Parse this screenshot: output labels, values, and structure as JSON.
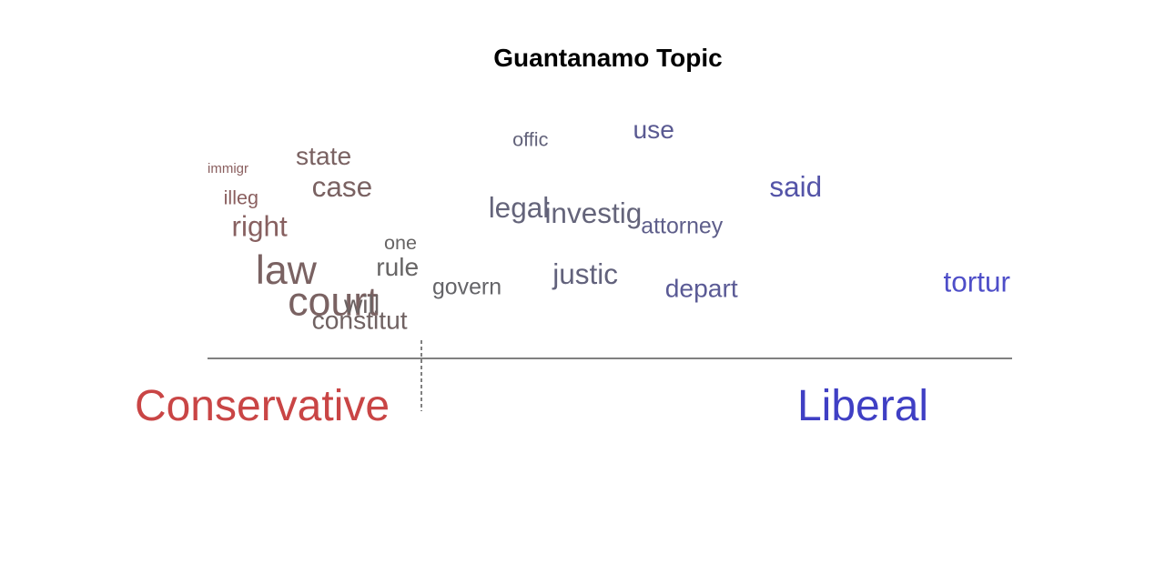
{
  "chart_data": {
    "type": "scatter",
    "title": "Guantanamo Topic",
    "xlabel": "",
    "ylabel": "",
    "grid": false,
    "legend": "none",
    "pole_labels": {
      "left": "Conservative",
      "right": "Liberal"
    },
    "pole_colors": {
      "left": "#c94545",
      "right": "#3f3fc4"
    },
    "words": [
      {
        "word": "immigr",
        "x": 0.0,
        "y": 0.92,
        "weight": 1,
        "color": "#8a5f5f"
      },
      {
        "word": "state",
        "x": 0.11,
        "y": 0.95,
        "weight": 5,
        "color": "#7a6262"
      },
      {
        "word": "case",
        "x": 0.13,
        "y": 0.83,
        "weight": 6,
        "color": "#7a6262"
      },
      {
        "word": "illeg",
        "x": 0.02,
        "y": 0.8,
        "weight": 3,
        "color": "#8a5f5f"
      },
      {
        "word": "right",
        "x": 0.03,
        "y": 0.68,
        "weight": 6,
        "color": "#876060"
      },
      {
        "word": "law",
        "x": 0.06,
        "y": 0.5,
        "weight": 10,
        "color": "#7a6262"
      },
      {
        "word": "court",
        "x": 0.1,
        "y": 0.38,
        "weight": 10,
        "color": "#7a6262"
      },
      {
        "word": "will",
        "x": 0.17,
        "y": 0.39,
        "weight": 5,
        "color": "#6a6262"
      },
      {
        "word": "constitut",
        "x": 0.13,
        "y": 0.33,
        "weight": 5,
        "color": "#706262"
      },
      {
        "word": "one",
        "x": 0.22,
        "y": 0.63,
        "weight": 3,
        "color": "#676565"
      },
      {
        "word": "rule",
        "x": 0.21,
        "y": 0.53,
        "weight": 5,
        "color": "#676565"
      },
      {
        "word": "govern",
        "x": 0.28,
        "y": 0.46,
        "weight": 4,
        "color": "#646468"
      },
      {
        "word": "offic",
        "x": 0.38,
        "y": 1.02,
        "weight": 3,
        "color": "#62627a"
      },
      {
        "word": "use",
        "x": 0.53,
        "y": 1.05,
        "weight": 5,
        "color": "#5a5a92"
      },
      {
        "word": "legal",
        "x": 0.35,
        "y": 0.75,
        "weight": 6,
        "color": "#64647a"
      },
      {
        "word": "investig",
        "x": 0.42,
        "y": 0.73,
        "weight": 6,
        "color": "#64647a"
      },
      {
        "word": "attorney",
        "x": 0.54,
        "y": 0.69,
        "weight": 4,
        "color": "#5e5e8a"
      },
      {
        "word": "said",
        "x": 0.7,
        "y": 0.83,
        "weight": 6,
        "color": "#5454a8"
      },
      {
        "word": "justic",
        "x": 0.43,
        "y": 0.5,
        "weight": 6,
        "color": "#62627c"
      },
      {
        "word": "depart",
        "x": 0.57,
        "y": 0.45,
        "weight": 5,
        "color": "#5a5a95"
      },
      {
        "word": "tortur",
        "x": 1.0,
        "y": 0.47,
        "weight": 6,
        "color": "#4e4ec8"
      }
    ]
  }
}
